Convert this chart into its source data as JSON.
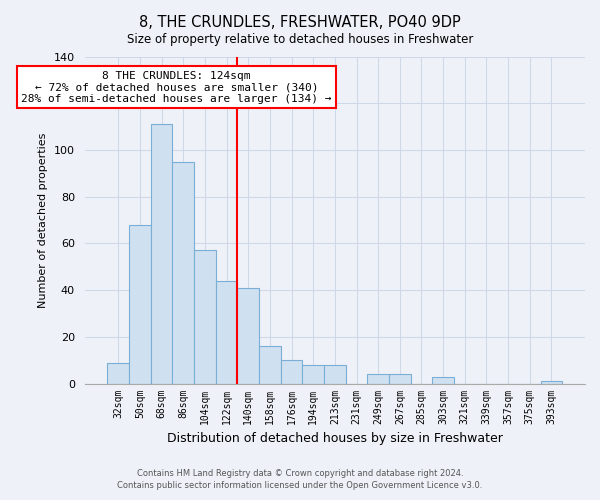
{
  "title": "8, THE CRUNDLES, FRESHWATER, PO40 9DP",
  "subtitle": "Size of property relative to detached houses in Freshwater",
  "xlabel": "Distribution of detached houses by size in Freshwater",
  "ylabel": "Number of detached properties",
  "bar_labels": [
    "32sqm",
    "50sqm",
    "68sqm",
    "86sqm",
    "104sqm",
    "122sqm",
    "140sqm",
    "158sqm",
    "176sqm",
    "194sqm",
    "213sqm",
    "231sqm",
    "249sqm",
    "267sqm",
    "285sqm",
    "303sqm",
    "321sqm",
    "339sqm",
    "357sqm",
    "375sqm",
    "393sqm"
  ],
  "bar_values": [
    9,
    68,
    111,
    95,
    57,
    44,
    41,
    16,
    10,
    8,
    8,
    0,
    4,
    4,
    0,
    3,
    0,
    0,
    0,
    0,
    1
  ],
  "bar_color": "#cfe0f0",
  "bar_edge_color": "#7baed4",
  "vline_x": 5.5,
  "vline_color": "red",
  "annotation_title": "8 THE CRUNDLES: 124sqm",
  "annotation_line1": "← 72% of detached houses are smaller (340)",
  "annotation_line2": "28% of semi-detached houses are larger (134) →",
  "annotation_box_color": "white",
  "annotation_box_edge": "red",
  "ylim": [
    0,
    140
  ],
  "yticks": [
    0,
    20,
    40,
    60,
    80,
    100,
    120,
    140
  ],
  "footer1": "Contains HM Land Registry data © Crown copyright and database right 2024.",
  "footer2": "Contains public sector information licensed under the Open Government Licence v3.0.",
  "bg_color": "#eef2f8",
  "grid_color": "#d0d8e8"
}
